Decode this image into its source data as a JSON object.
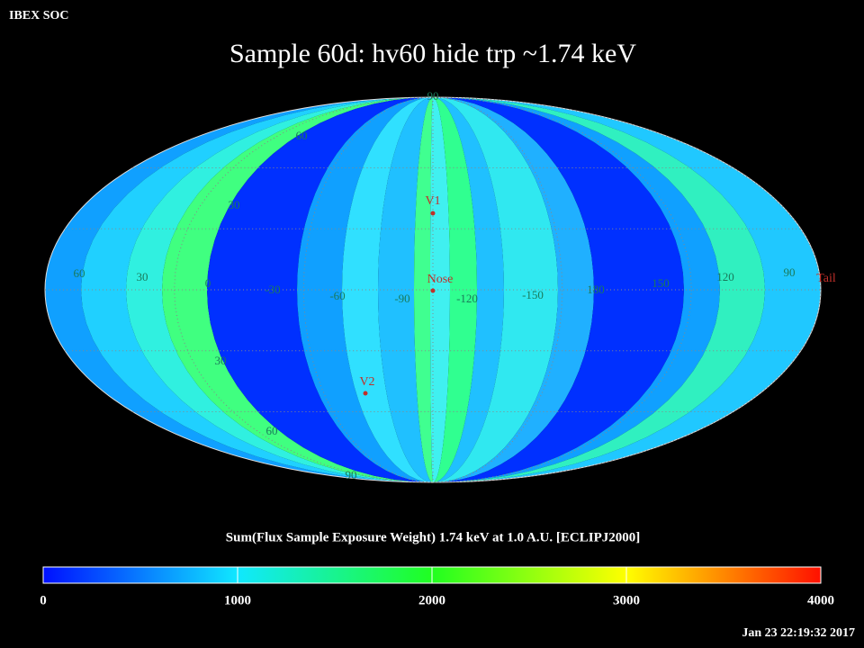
{
  "header": {
    "org": "IBEX SOC",
    "title": "Sample 60d: hv60 hide trp ~1.74 keV",
    "timestamp": "Jan 23 22:19:32 2017"
  },
  "map": {
    "longitude_labels": [
      "60",
      "30",
      "0",
      "-30",
      "-60",
      "-90",
      "-120",
      "-150",
      "180",
      "150",
      "120",
      "90"
    ],
    "latitude_labels": [
      "90",
      "60",
      "30",
      "30",
      "60",
      "90"
    ],
    "markers": [
      "V1",
      "Nose",
      "V2",
      "Tail"
    ]
  },
  "colorbar": {
    "title": "Sum(Flux Sample Exposure Weight)  1.74 keV at 1.0 A.U. [ECLIPJ2000]",
    "range": [
      0,
      4000
    ],
    "ticks": [
      0,
      1000,
      2000,
      3000,
      4000
    ]
  }
}
